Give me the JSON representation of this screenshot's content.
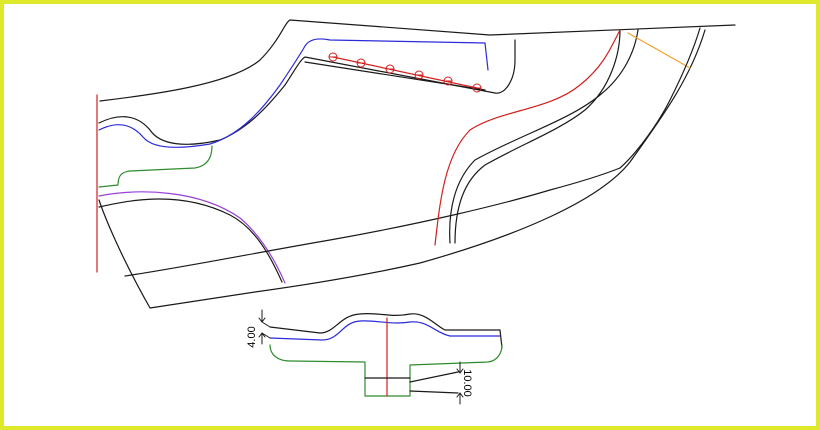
{
  "colors": {
    "frame": "#dfe92b",
    "outline": "#1a1a1a",
    "blue": "#2b2bd9",
    "red": "#d21f1f",
    "green": "#2e8b2e",
    "purple": "#9a3fd6",
    "orange": "#f0a030"
  },
  "pattern": {
    "punch_marks": 6
  },
  "dimensions": {
    "top_offset": "4.00",
    "bottom_offset": "10.00"
  }
}
